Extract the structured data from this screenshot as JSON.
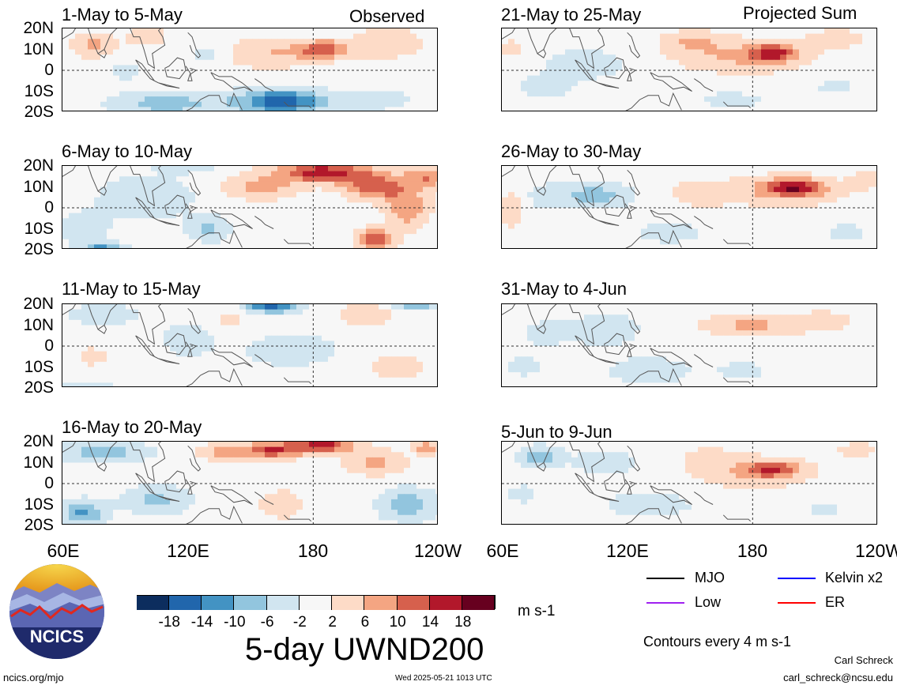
{
  "observed_label": "Observed",
  "projected_label": "Projected Sum",
  "lat_labels": [
    "20N",
    "10N",
    "0",
    "10S",
    "20S"
  ],
  "lon_labels": [
    "60E",
    "120E",
    "180",
    "120W"
  ],
  "colorbar": {
    "labels": [
      "-18",
      "-14",
      "-10",
      "-6",
      "-2",
      "2",
      "6",
      "10",
      "14",
      "18"
    ],
    "colors": [
      "#0c2d5e",
      "#2166ac",
      "#4393c3",
      "#92c5de",
      "#d1e5f0",
      "#f7f7f7",
      "#fddbc7",
      "#f4a582",
      "#d6604d",
      "#b2182b",
      "#67001f"
    ],
    "units": "m s-1"
  },
  "main_title": "5-day UWND200",
  "legend": {
    "mjo": "MJO",
    "kelvin": "Kelvin x2",
    "low": "Low",
    "er": "ER",
    "colors": {
      "mjo": "#000000",
      "kelvin": "#0000ff",
      "low": "#a020f0",
      "er": "#ff0000"
    }
  },
  "contour_note": "Contours every 4 m s-1",
  "logo_text": "NCICS",
  "footer": {
    "url": "ncics.org/mjo",
    "timestamp": "Wed 2025-05-21 1013 UTC",
    "author": "Carl Schreck",
    "email": "carl_schreck@ncsu.edu"
  },
  "chart_data": {
    "type": "heatmap",
    "variable": "5-day UWND200",
    "units": "m s-1",
    "levels": [
      -18,
      -14,
      -10,
      -6,
      -2,
      2,
      6,
      10,
      14,
      18
    ],
    "lat_range": [
      -20,
      20
    ],
    "lon_range": [
      60,
      240
    ],
    "panels": [
      {
        "title": "1-May to 5-May",
        "group": "Observed",
        "blobs": [
          [
            185,
            10,
            11,
            4,
            13
          ],
          [
            160,
            8,
            25,
            7,
            6
          ],
          [
            75,
            12,
            10,
            6,
            7
          ],
          [
            100,
            16,
            9,
            5,
            5
          ],
          [
            215,
            13,
            16,
            7,
            6
          ],
          [
            165,
            -15,
            22,
            6,
            -16
          ],
          [
            110,
            -16,
            26,
            6,
            -8
          ],
          [
            210,
            -14,
            16,
            5,
            -5
          ],
          [
            130,
            8,
            10,
            6,
            -4
          ],
          [
            90,
            0,
            12,
            6,
            -3
          ]
        ]
      },
      {
        "title": "6-May to 10-May",
        "group": "Observed",
        "blobs": [
          [
            185,
            17,
            22,
            5,
            16
          ],
          [
            210,
            10,
            14,
            6,
            13
          ],
          [
            155,
            10,
            18,
            6,
            7
          ],
          [
            225,
            0,
            10,
            10,
            9
          ],
          [
            210,
            -15,
            8,
            5,
            14
          ],
          [
            100,
            5,
            22,
            10,
            -6
          ],
          [
            70,
            -10,
            12,
            8,
            -5
          ],
          [
            130,
            -10,
            10,
            6,
            -7
          ],
          [
            80,
            -20,
            10,
            3,
            -12
          ],
          [
            120,
            20,
            14,
            3,
            -6
          ],
          [
            235,
            15,
            10,
            5,
            10
          ]
        ]
      },
      {
        "title": "11-May to 15-May",
        "group": "Observed",
        "blobs": [
          [
            160,
            19,
            12,
            3,
            -16
          ],
          [
            230,
            20,
            12,
            3,
            -10
          ],
          [
            80,
            15,
            18,
            5,
            -5
          ],
          [
            120,
            3,
            12,
            8,
            -5
          ],
          [
            170,
            -2,
            26,
            9,
            -4
          ],
          [
            205,
            15,
            14,
            5,
            5
          ],
          [
            75,
            -5,
            12,
            6,
            3
          ],
          [
            140,
            12,
            10,
            5,
            3
          ],
          [
            220,
            -10,
            12,
            6,
            5
          ],
          [
            65,
            -20,
            20,
            2,
            -8
          ]
        ]
      },
      {
        "title": "16-May to 20-May",
        "group": "Observed",
        "blobs": [
          [
            160,
            16,
            16,
            4,
            14
          ],
          [
            185,
            18,
            14,
            3,
            16
          ],
          [
            210,
            10,
            14,
            6,
            7
          ],
          [
            135,
            15,
            10,
            4,
            7
          ],
          [
            80,
            15,
            20,
            5,
            -9
          ],
          [
            105,
            -8,
            16,
            7,
            -7
          ],
          [
            165,
            -10,
            12,
            8,
            4
          ],
          [
            225,
            -10,
            14,
            8,
            -8
          ],
          [
            70,
            -14,
            10,
            6,
            -11
          ],
          [
            235,
            17,
            7,
            3,
            9
          ]
        ]
      },
      {
        "title": "21-May to 25-May",
        "group": "Projected Sum",
        "blobs": [
          [
            190,
            8,
            10,
            4,
            13
          ],
          [
            175,
            7,
            30,
            8,
            7
          ],
          [
            150,
            14,
            14,
            5,
            5
          ],
          [
            220,
            15,
            14,
            5,
            4
          ],
          [
            100,
            3,
            18,
            7,
            -5
          ],
          [
            80,
            -8,
            14,
            6,
            -4
          ],
          [
            170,
            -14,
            22,
            5,
            -3
          ],
          [
            220,
            -8,
            12,
            5,
            -3
          ],
          [
            65,
            10,
            6,
            6,
            3
          ]
        ]
      },
      {
        "title": "26-May to 30-May",
        "group": "Projected Sum",
        "blobs": [
          [
            200,
            10,
            12,
            4,
            13
          ],
          [
            195,
            8,
            28,
            7,
            7
          ],
          [
            155,
            7,
            14,
            6,
            5
          ],
          [
            105,
            6,
            16,
            6,
            -8
          ],
          [
            80,
            5,
            14,
            8,
            -3
          ],
          [
            140,
            -12,
            22,
            7,
            -3
          ],
          [
            225,
            -12,
            12,
            6,
            -3
          ],
          [
            65,
            0,
            6,
            10,
            5
          ],
          [
            235,
            14,
            8,
            5,
            4
          ]
        ]
      },
      {
        "title": "31-May to 4-Jun",
        "group": "Projected Sum",
        "blobs": [
          [
            180,
            10,
            24,
            5,
            7
          ],
          [
            215,
            12,
            14,
            5,
            4
          ],
          [
            110,
            8,
            16,
            8,
            -5
          ],
          [
            130,
            -12,
            18,
            6,
            -6
          ],
          [
            175,
            -12,
            16,
            6,
            -3
          ],
          [
            80,
            6,
            14,
            8,
            -3
          ],
          [
            70,
            -10,
            12,
            6,
            -3
          ],
          [
            235,
            -5,
            8,
            6,
            -2
          ]
        ]
      },
      {
        "title": "5-Jun to 9-Jun",
        "group": "Projected Sum",
        "blobs": [
          [
            190,
            7,
            12,
            4,
            10
          ],
          [
            180,
            5,
            28,
            7,
            6
          ],
          [
            160,
            13,
            16,
            5,
            3
          ],
          [
            78,
            13,
            10,
            5,
            -9
          ],
          [
            110,
            10,
            16,
            6,
            -5
          ],
          [
            130,
            -10,
            24,
            7,
            -4
          ],
          [
            215,
            -12,
            10,
            5,
            -3
          ],
          [
            230,
            16,
            10,
            4,
            4
          ],
          [
            70,
            -5,
            10,
            6,
            -3
          ]
        ]
      }
    ]
  }
}
